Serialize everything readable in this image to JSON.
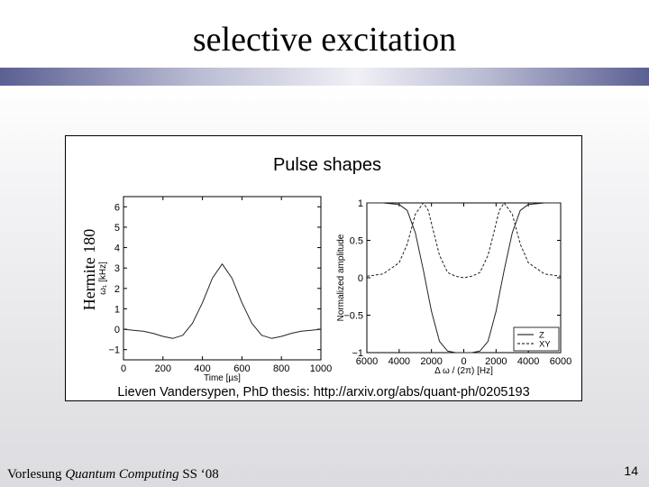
{
  "slide": {
    "title": "selective excitation",
    "footer_prefix": "Vorlesung ",
    "footer_italic": "Quantum Computing",
    "footer_suffix": " SS ‘08",
    "page_number": "14"
  },
  "figure": {
    "heading": "Pulse shapes",
    "side_label": "Hermite 180",
    "caption": "Lieven Vandersypen, PhD thesis: http://arxiv.org/abs/quant-ph/0205193"
  },
  "chart_data": [
    {
      "type": "line",
      "xlabel": "Time [µs]",
      "ylabel": "ω₁ [kHz]",
      "xlim": [
        0,
        1000
      ],
      "ylim": [
        -1.5,
        6.5
      ],
      "xticks": [
        "0",
        "200",
        "400",
        "600",
        "800",
        "1000"
      ],
      "yticks": [
        "−1",
        "0",
        "1",
        "2",
        "3",
        "4",
        "5",
        "6"
      ],
      "ytick_values": [
        -1,
        0,
        1,
        2,
        3,
        4,
        5,
        6
      ],
      "xtick_values": [
        0,
        200,
        400,
        600,
        800,
        1000
      ],
      "series": [
        {
          "style": "solid",
          "x": [
            0,
            50,
            100,
            150,
            200,
            250,
            300,
            350,
            400,
            450,
            500,
            550,
            600,
            650,
            700,
            750,
            800,
            850,
            900,
            950,
            1000
          ],
          "y": [
            0.0,
            -0.05,
            -0.1,
            -0.2,
            -0.35,
            -0.45,
            -0.3,
            0.3,
            1.3,
            2.5,
            3.2,
            2.5,
            1.3,
            0.3,
            -0.3,
            -0.45,
            -0.35,
            -0.2,
            -0.1,
            -0.05,
            0.0
          ]
        }
      ]
    },
    {
      "type": "line",
      "xlabel": "Δ ω / (2π) [Hz]",
      "ylabel": "Normalized amplitude",
      "xlim": [
        -6000,
        6000
      ],
      "ylim": [
        -1,
        1
      ],
      "xticks": [
        "6000",
        "4000",
        "2000",
        "0",
        "2000",
        "4000",
        "6000"
      ],
      "xtick_values": [
        -6000,
        -4000,
        -2000,
        0,
        2000,
        4000,
        6000
      ],
      "yticks": [
        "1",
        "0.5",
        "0",
        "−0.5",
        "−1"
      ],
      "ytick_values": [
        1,
        0.5,
        0,
        -0.5,
        -1
      ],
      "legend_position": "bottom-right",
      "series": [
        {
          "name": "Z",
          "style": "solid",
          "x": [
            -6000,
            -5000,
            -4000,
            -3500,
            -3000,
            -2500,
            -2000,
            -1500,
            -1000,
            -500,
            0,
            500,
            1000,
            1500,
            2000,
            2500,
            3000,
            3500,
            4000,
            5000,
            6000
          ],
          "y": [
            1,
            1,
            0.98,
            0.9,
            0.6,
            0.1,
            -0.45,
            -0.85,
            -0.98,
            -1,
            -1,
            -1,
            -0.98,
            -0.85,
            -0.45,
            0.1,
            0.6,
            0.9,
            0.98,
            1,
            1
          ]
        },
        {
          "name": "XY",
          "style": "dashed",
          "x": [
            -6000,
            -5000,
            -4000,
            -3500,
            -3000,
            -2500,
            -2200,
            -1800,
            -1500,
            -1000,
            -500,
            0,
            500,
            1000,
            1500,
            1800,
            2200,
            2500,
            3000,
            3500,
            4000,
            5000,
            6000
          ],
          "y": [
            0.02,
            0.05,
            0.2,
            0.45,
            0.85,
            1,
            0.9,
            0.55,
            0.3,
            0.07,
            0.02,
            0,
            0.02,
            0.07,
            0.3,
            0.55,
            0.9,
            1,
            0.85,
            0.45,
            0.2,
            0.05,
            0.02
          ]
        }
      ]
    }
  ]
}
